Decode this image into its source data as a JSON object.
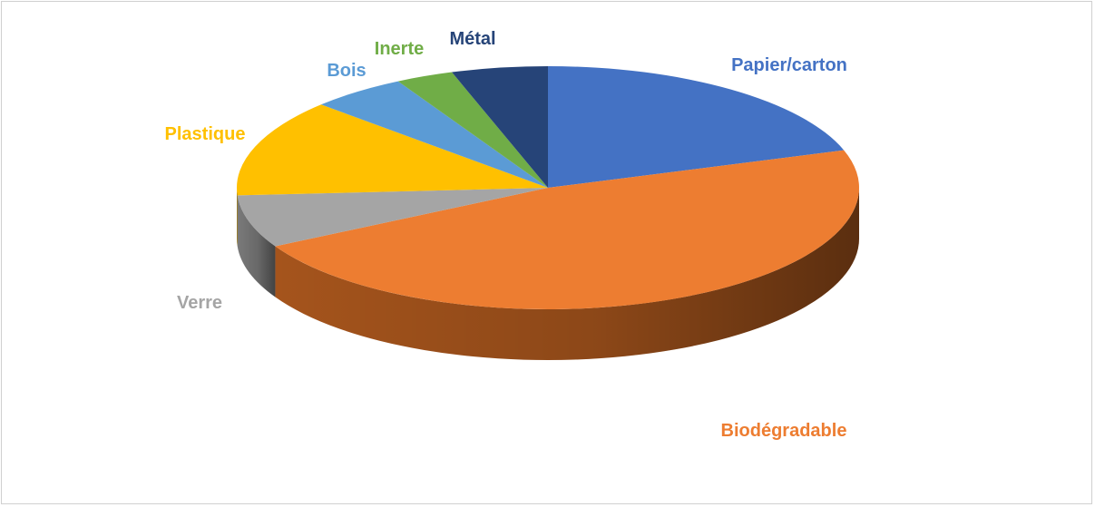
{
  "chart_data": {
    "type": "pie",
    "title": "",
    "style": "3d",
    "start_angle_deg": 0,
    "direction": "clockwise",
    "slices": [
      {
        "label": "Papier/carton",
        "value": 20,
        "color": "#4472C4",
        "side_color": "#2E4F8A"
      },
      {
        "label": "Biodégradable",
        "value": 47,
        "color": "#ED7D31",
        "side_color": "#A5541C"
      },
      {
        "label": "Verre",
        "value": 7,
        "color": "#A5A5A5",
        "side_color": "#7A7A7A"
      },
      {
        "label": "Plastique",
        "value": 13,
        "color": "#FFC000",
        "side_color": "#B38700"
      },
      {
        "label": "Bois",
        "value": 5,
        "color": "#5B9BD5",
        "side_color": "#3F6E97"
      },
      {
        "label": "Inerte",
        "value": 3,
        "color": "#70AD47",
        "side_color": "#4E7A31"
      },
      {
        "label": "Métal",
        "value": 5,
        "color": "#264478",
        "side_color": "#162B4E"
      }
    ],
    "legend": "none"
  }
}
